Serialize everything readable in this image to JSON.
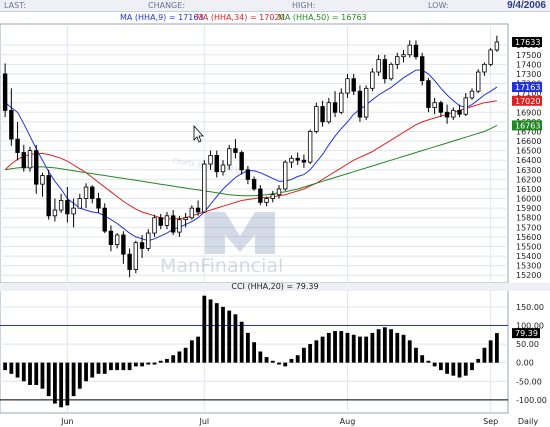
{
  "header": {
    "last_label": "LAST:",
    "change_label": "CHANGE:",
    "high_label": "HIGH:",
    "low_label": "LOW:",
    "date": "9/4/2006"
  },
  "legend": {
    "ma9": "MA (HHA,9) = 17163",
    "ma34": "MA (HHA,34) = 17020",
    "ma50": "MA (HHA,50) = 16763"
  },
  "watermark": {
    "line1": "Man",
    "line2": "Financial",
    "sponsor": "Charts sponsored by"
  },
  "colors": {
    "ma9": "#2233dd",
    "ma34": "#dd2222",
    "ma50": "#228822",
    "candle": "#000000",
    "cci_ref": "#2233dd",
    "last_tag": "#000000"
  },
  "chart_data": [
    {
      "type": "candlestick",
      "title": "",
      "ylim": [
        15140,
        17800
      ],
      "y_ticks": [
        15200,
        15300,
        15400,
        15500,
        15600,
        15700,
        15800,
        15900,
        16000,
        16100,
        16200,
        16300,
        16400,
        16500,
        16600,
        16700,
        16800,
        16900,
        17000,
        17100,
        17200,
        17300,
        17400,
        17500,
        17600
      ],
      "y_tick_labels": [
        "15200",
        "15300",
        "15400",
        "15500",
        "15600",
        "15700",
        "15800",
        "15900",
        "16000",
        "16100",
        "16200",
        "16300",
        "16400",
        "16500",
        "16600",
        "16700",
        "16800",
        "16900",
        "17000",
        "17100",
        "17200",
        "17300",
        "17400",
        "17500",
        "17600"
      ],
      "x_labels": [
        "Jun",
        "Jul",
        "Aug",
        "Sep"
      ],
      "x_label_bar": [
        10,
        32,
        55,
        78
      ],
      "tags": [
        {
          "value": 17633,
          "label": "17633",
          "color": "#000000",
          "text_color": "#ffffff"
        },
        {
          "value": 17163,
          "label": "17163",
          "color": "#2233dd",
          "text_color": "#ffffff"
        },
        {
          "value": 17020,
          "label": "17020",
          "color": "#dd2222",
          "text_color": "#ffffff"
        },
        {
          "value": 16763,
          "label": "16763",
          "color": "#228822",
          "text_color": "#ffffff"
        }
      ],
      "candles": [
        [
          17300,
          17410,
          16850,
          16920
        ],
        [
          16920,
          17150,
          16550,
          16620
        ],
        [
          16620,
          16800,
          16400,
          16480
        ],
        [
          16480,
          16560,
          16280,
          16320
        ],
        [
          16320,
          16540,
          16280,
          16500
        ],
        [
          16500,
          16560,
          16050,
          16150
        ],
        [
          16150,
          16270,
          16020,
          16240
        ],
        [
          16240,
          16300,
          15780,
          15820
        ],
        [
          15820,
          16000,
          15760,
          15880
        ],
        [
          15880,
          16050,
          15850,
          15980
        ],
        [
          15980,
          16120,
          15750,
          15840
        ],
        [
          15840,
          16000,
          15700,
          15900
        ],
        [
          15900,
          16050,
          15900,
          16000
        ],
        [
          16000,
          16160,
          15900,
          16120
        ],
        [
          16120,
          16140,
          15950,
          16000
        ],
        [
          16000,
          16060,
          15850,
          15900
        ],
        [
          15900,
          15950,
          15640,
          15660
        ],
        [
          15660,
          15720,
          15450,
          15520
        ],
        [
          15520,
          15640,
          15480,
          15620
        ],
        [
          15620,
          15660,
          15320,
          15420
        ],
        [
          15420,
          15480,
          15180,
          15260
        ],
        [
          15260,
          15560,
          15220,
          15540
        ],
        [
          15540,
          15620,
          15380,
          15480
        ],
        [
          15480,
          15680,
          15450,
          15640
        ],
        [
          15640,
          15830,
          15600,
          15800
        ],
        [
          15800,
          15840,
          15680,
          15720
        ],
        [
          15720,
          15860,
          15680,
          15820
        ],
        [
          15820,
          15880,
          15620,
          15650
        ],
        [
          15650,
          15820,
          15600,
          15780
        ],
        [
          15780,
          15850,
          15700,
          15800
        ],
        [
          15800,
          15930,
          15780,
          15900
        ],
        [
          15900,
          15980,
          15820,
          15860
        ],
        [
          15860,
          16400,
          15850,
          16360
        ],
        [
          16360,
          16500,
          16300,
          16450
        ],
        [
          16450,
          16500,
          16220,
          16280
        ],
        [
          16280,
          16400,
          16240,
          16350
        ],
        [
          16350,
          16560,
          16300,
          16520
        ],
        [
          16520,
          16620,
          16420,
          16480
        ],
        [
          16480,
          16500,
          16250,
          16300
        ],
        [
          16300,
          16340,
          16150,
          16200
        ],
        [
          16200,
          16230,
          16080,
          16100
        ],
        [
          16100,
          16140,
          15930,
          15960
        ],
        [
          15960,
          16020,
          15920,
          16000
        ],
        [
          16000,
          16080,
          15960,
          16040
        ],
        [
          16040,
          16140,
          16000,
          16100
        ],
        [
          16100,
          16400,
          16080,
          16380
        ],
        [
          16380,
          16450,
          16320,
          16420
        ],
        [
          16420,
          16480,
          16350,
          16400
        ],
        [
          16400,
          16460,
          16320,
          16380
        ],
        [
          16380,
          16720,
          16360,
          16700
        ],
        [
          16700,
          17000,
          16680,
          16960
        ],
        [
          16960,
          17020,
          16750,
          16800
        ],
        [
          16800,
          17050,
          16780,
          17000
        ],
        [
          17000,
          17120,
          16850,
          16900
        ],
        [
          16900,
          17150,
          16880,
          17100
        ],
        [
          17100,
          17300,
          17050,
          17250
        ],
        [
          17250,
          17300,
          17080,
          17120
        ],
        [
          17120,
          17180,
          16800,
          16850
        ],
        [
          16850,
          17180,
          16820,
          17150
        ],
        [
          17150,
          17360,
          17120,
          17320
        ],
        [
          17320,
          17500,
          17280,
          17450
        ],
        [
          17450,
          17500,
          17200,
          17250
        ],
        [
          17250,
          17420,
          17230,
          17400
        ],
        [
          17400,
          17520,
          17350,
          17480
        ],
        [
          17480,
          17550,
          17420,
          17500
        ],
        [
          17500,
          17650,
          17470,
          17600
        ],
        [
          17600,
          17650,
          17450,
          17480
        ],
        [
          17480,
          17520,
          17180,
          17230
        ],
        [
          17230,
          17260,
          16900,
          16950
        ],
        [
          16950,
          17050,
          16880,
          17000
        ],
        [
          17000,
          17020,
          16850,
          16900
        ],
        [
          16900,
          16980,
          16780,
          16850
        ],
        [
          16850,
          16950,
          16820,
          16920
        ],
        [
          16920,
          16980,
          16850,
          16880
        ],
        [
          16880,
          17100,
          16860,
          17050
        ],
        [
          17050,
          17150,
          17030,
          17120
        ],
        [
          17120,
          17350,
          17100,
          17320
        ],
        [
          17320,
          17420,
          17280,
          17400
        ],
        [
          17400,
          17570,
          17380,
          17550
        ],
        [
          17550,
          17700,
          17530,
          17633
        ]
      ],
      "series": [
        {
          "name": "MA (HHA,9)",
          "color": "#2233dd",
          "values": [
            17000,
            16950,
            16900,
            16780,
            16650,
            16520,
            16400,
            16280,
            16180,
            16100,
            16000,
            15950,
            15900,
            15880,
            15860,
            15850,
            15820,
            15780,
            15740,
            15690,
            15640,
            15600,
            15580,
            15560,
            15580,
            15610,
            15640,
            15680,
            15700,
            15730,
            15760,
            15800,
            15860,
            15940,
            16020,
            16100,
            16160,
            16220,
            16260,
            16290,
            16290,
            16270,
            16240,
            16210,
            16180,
            16180,
            16200,
            16230,
            16250,
            16300,
            16380,
            16460,
            16560,
            16650,
            16730,
            16800,
            16880,
            16930,
            16980,
            17030,
            17080,
            17120,
            17160,
            17210,
            17260,
            17300,
            17340,
            17340,
            17300,
            17230,
            17150,
            17080,
            17020,
            16970,
            16950,
            16980,
            17030,
            17080,
            17120,
            17163
          ]
        },
        {
          "name": "MA (HHA,34)",
          "color": "#dd2222",
          "values": [
            16300,
            16360,
            16410,
            16440,
            16460,
            16470,
            16470,
            16460,
            16440,
            16420,
            16390,
            16350,
            16310,
            16270,
            16220,
            16170,
            16120,
            16070,
            16020,
            15970,
            15930,
            15890,
            15860,
            15840,
            15820,
            15800,
            15790,
            15790,
            15790,
            15800,
            15820,
            15840,
            15860,
            15880,
            15900,
            15920,
            15940,
            15960,
            15980,
            15990,
            16000,
            16010,
            16010,
            16020,
            16030,
            16040,
            16060,
            16080,
            16100,
            16130,
            16160,
            16200,
            16240,
            16280,
            16320,
            16360,
            16400,
            16430,
            16460,
            16490,
            16530,
            16570,
            16610,
            16650,
            16690,
            16730,
            16770,
            16800,
            16820,
            16840,
            16860,
            16880,
            16900,
            16920,
            16940,
            16960,
            16980,
            17000,
            17010,
            17020
          ]
        },
        {
          "name": "MA (HHA,50)",
          "color": "#228822",
          "values": [
            16300,
            16310,
            16320,
            16325,
            16330,
            16330,
            16330,
            16325,
            16320,
            16310,
            16300,
            16290,
            16280,
            16270,
            16260,
            16250,
            16240,
            16230,
            16220,
            16210,
            16200,
            16190,
            16180,
            16170,
            16160,
            16150,
            16140,
            16130,
            16120,
            16110,
            16100,
            16090,
            16080,
            16070,
            16060,
            16050,
            16040,
            16035,
            16030,
            16030,
            16030,
            16035,
            16040,
            16050,
            16060,
            16070,
            16085,
            16100,
            16120,
            16140,
            16160,
            16180,
            16200,
            16220,
            16240,
            16260,
            16280,
            16300,
            16320,
            16340,
            16360,
            16380,
            16400,
            16420,
            16440,
            16460,
            16480,
            16500,
            16520,
            16540,
            16560,
            16580,
            16600,
            16620,
            16640,
            16660,
            16680,
            16700,
            16730,
            16763
          ]
        }
      ]
    },
    {
      "type": "bar",
      "title": "CCI (HHA,20) = 79.39",
      "ylim": [
        -130,
        190
      ],
      "y_ticks": [
        150,
        100,
        50,
        0,
        -50,
        -100
      ],
      "y_tick_labels": [
        "150.00",
        "100.00",
        "50.00",
        "0.00",
        "-50.00",
        "-100.00"
      ],
      "reference_lines": [
        100,
        -100
      ],
      "last_value_label": "79.39",
      "x_labels": [
        "Jun",
        "Jul",
        "Aug",
        "Sep"
      ],
      "x_label_bar": [
        10,
        32,
        55,
        78
      ],
      "axis_label": "Daily",
      "values": [
        -20,
        -30,
        -40,
        -50,
        -60,
        -60,
        -70,
        -90,
        -110,
        -120,
        -115,
        -90,
        -70,
        -50,
        -40,
        -30,
        -30,
        -20,
        -20,
        -20,
        -20,
        -10,
        -10,
        -5,
        -5,
        5,
        10,
        20,
        30,
        40,
        60,
        70,
        180,
        170,
        160,
        150,
        140,
        130,
        110,
        80,
        55,
        30,
        15,
        5,
        -5,
        -10,
        10,
        20,
        40,
        50,
        60,
        70,
        80,
        85,
        85,
        80,
        75,
        70,
        70,
        80,
        90,
        95,
        90,
        80,
        75,
        60,
        40,
        20,
        5,
        -10,
        -20,
        -30,
        -35,
        -40,
        -35,
        -20,
        10,
        40,
        60,
        79.39
      ]
    }
  ]
}
